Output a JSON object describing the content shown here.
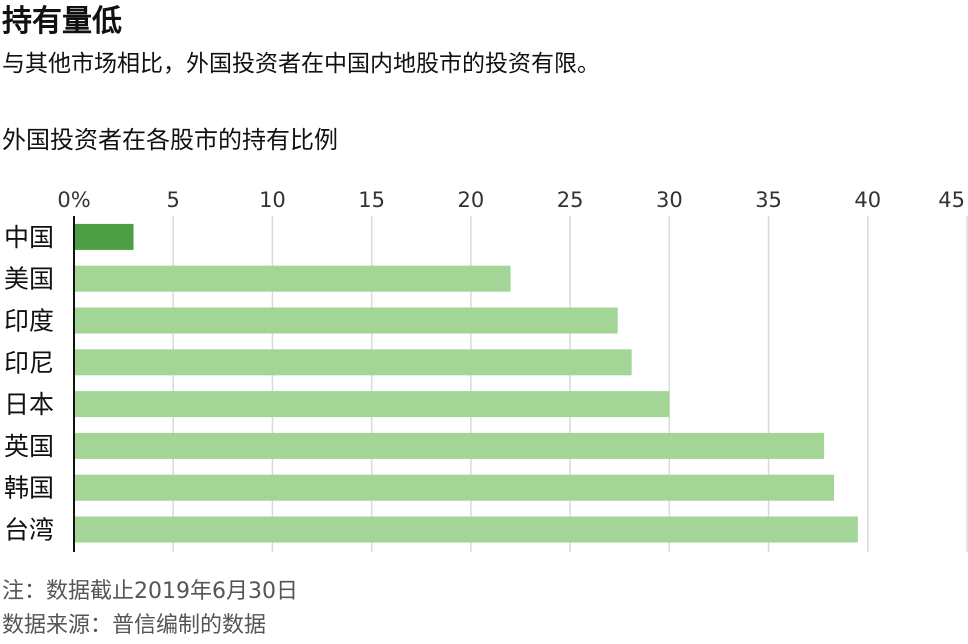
{
  "title": "持有量低",
  "subtitle": "与其他市场相比，外国投资者在中国内地股市的投资有限。",
  "chart_title": "外国投资者在各股市的持有比例",
  "note": "注：数据截止2019年6月30日",
  "source": "数据来源：普信编制的数据",
  "colors": {
    "highlight_bar": "#4e9e45",
    "bar": "#a3d597",
    "grid": "#d9d9d9",
    "axis": "#111111"
  },
  "chart_data": {
    "type": "bar",
    "orientation": "horizontal",
    "title": "外国投资者在各股市的持有比例",
    "categories": [
      "中国",
      "美国",
      "印度",
      "印尼",
      "日本",
      "英国",
      "韩国",
      "台湾"
    ],
    "values": [
      3.0,
      22.0,
      27.4,
      28.1,
      30.0,
      37.8,
      38.3,
      39.5
    ],
    "highlight_index": 0,
    "xlim": [
      0,
      45
    ],
    "ticks": [
      0,
      5,
      10,
      15,
      20,
      25,
      30,
      35,
      40,
      45
    ],
    "tick_labels": [
      "0%",
      "5",
      "10",
      "15",
      "20",
      "25",
      "30",
      "35",
      "40",
      "45"
    ],
    "tick_position": "top",
    "grid": true,
    "legend": "none"
  }
}
